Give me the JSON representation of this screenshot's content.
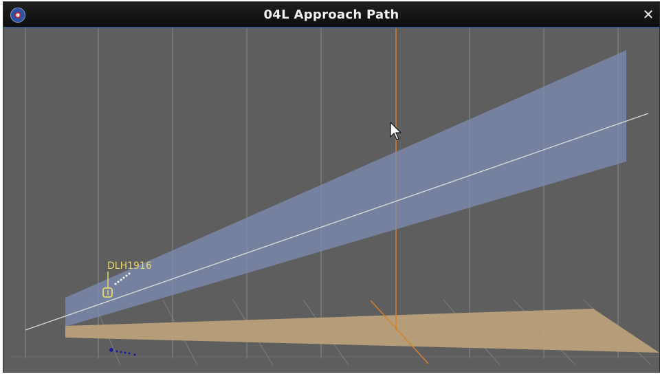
{
  "window": {
    "title": "04L Approach Path",
    "close_glyph": "✕",
    "app_icon": "radar-app-icon"
  },
  "scene": {
    "aircraft": {
      "callsign": "DLH1916"
    },
    "colors": {
      "background": "#5e5e5e",
      "grid": "#858585",
      "glide_slope_fill": "#7c8cb2",
      "glide_slope_line": "#d8d8d8",
      "runway_plane_fill": "#bea37c",
      "cursor_line": "#d4822a",
      "aircraft_label": "#e6d86a",
      "trail_dots": "#1a1aa0"
    },
    "cursor_icon": "mouse-pointer-icon"
  }
}
